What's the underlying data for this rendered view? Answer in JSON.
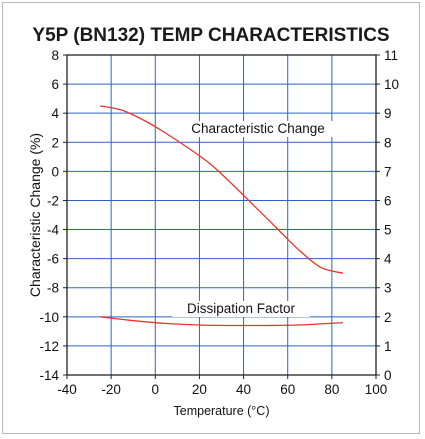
{
  "chart_data": {
    "type": "line",
    "title": "Y5P (BN132) TEMP CHARACTERISTICS",
    "xlabel": "Temperature (°C)",
    "ylabel": "Characteristic Change (%)",
    "xlim": [
      -40,
      100
    ],
    "ylim": [
      -14,
      8
    ],
    "y2lim": [
      0,
      11
    ],
    "xticks": [
      "-40",
      "-20",
      "0",
      "20",
      "40",
      "60",
      "80",
      "100"
    ],
    "yticks": [
      "8",
      "6",
      "4",
      "2",
      "0",
      "-2",
      "-4",
      "-6",
      "-8",
      "-10",
      "-12",
      "-14"
    ],
    "y2ticks": [
      "11",
      "10",
      "9",
      "8",
      "7",
      "6",
      "5",
      "4",
      "3",
      "2",
      "1",
      "0"
    ],
    "grid": true,
    "series": [
      {
        "name": "Characteristic Change",
        "axis": "left",
        "color": "#e8342a",
        "x": [
          -25,
          -15,
          -5,
          5,
          15,
          25,
          35,
          45,
          55,
          65,
          75,
          85
        ],
        "y": [
          4.5,
          4.2,
          3.5,
          2.6,
          1.6,
          0.5,
          -0.9,
          -2.4,
          -3.9,
          -5.4,
          -6.6,
          -7.0
        ]
      },
      {
        "name": "Dissipation Factor",
        "axis": "right",
        "color": "#e8342a",
        "x": [
          -25,
          -10,
          5,
          20,
          35,
          50,
          65,
          85
        ],
        "y": [
          2.0,
          1.87,
          1.77,
          1.72,
          1.7,
          1.7,
          1.72,
          1.8
        ]
      }
    ],
    "annotations": [
      {
        "text": "Characteristic Change"
      },
      {
        "text": "Dissipation Factor"
      }
    ]
  }
}
